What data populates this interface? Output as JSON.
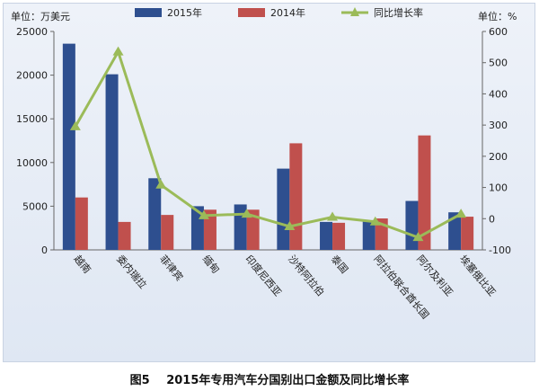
{
  "caption": {
    "figure_label": "图5",
    "text": "2015年专用汽车分国别出口金额及同比增长率"
  },
  "chart_data": {
    "type": "bar",
    "title": "",
    "left_axis_unit_label": "单位：万美元",
    "right_axis_unit_label": "单位：%",
    "ylim_left": [
      0,
      25000
    ],
    "yticks_left": [
      0,
      5000,
      10000,
      15000,
      20000,
      25000
    ],
    "ylim_right": [
      -100,
      600
    ],
    "yticks_right": [
      -100,
      0,
      100,
      200,
      300,
      400,
      500,
      600
    ],
    "categories": [
      "越南",
      "委内瑞拉",
      "菲律宾",
      "缅甸",
      "印度尼西亚",
      "沙特阿拉伯",
      "泰国",
      "阿拉伯联合酋长国",
      "阿尔及利亚",
      "埃塞俄比亚"
    ],
    "series": [
      {
        "name": "2015年",
        "type": "bar",
        "axis": "left",
        "color": "#2e4f8f",
        "values": [
          23600,
          20100,
          8200,
          5000,
          5200,
          9300,
          3200,
          3300,
          5600,
          4300
        ]
      },
      {
        "name": "2014年",
        "type": "bar",
        "axis": "left",
        "color": "#c0504d",
        "values": [
          6000,
          3200,
          4000,
          4600,
          4600,
          12200,
          3100,
          3600,
          13100,
          3800
        ]
      },
      {
        "name": "同比增长率",
        "type": "line",
        "axis": "right",
        "color": "#9bbb59",
        "values": [
          295,
          535,
          108,
          10,
          15,
          -25,
          5,
          -10,
          -60,
          15
        ]
      }
    ],
    "grid": false,
    "legend_position": "top-center"
  }
}
